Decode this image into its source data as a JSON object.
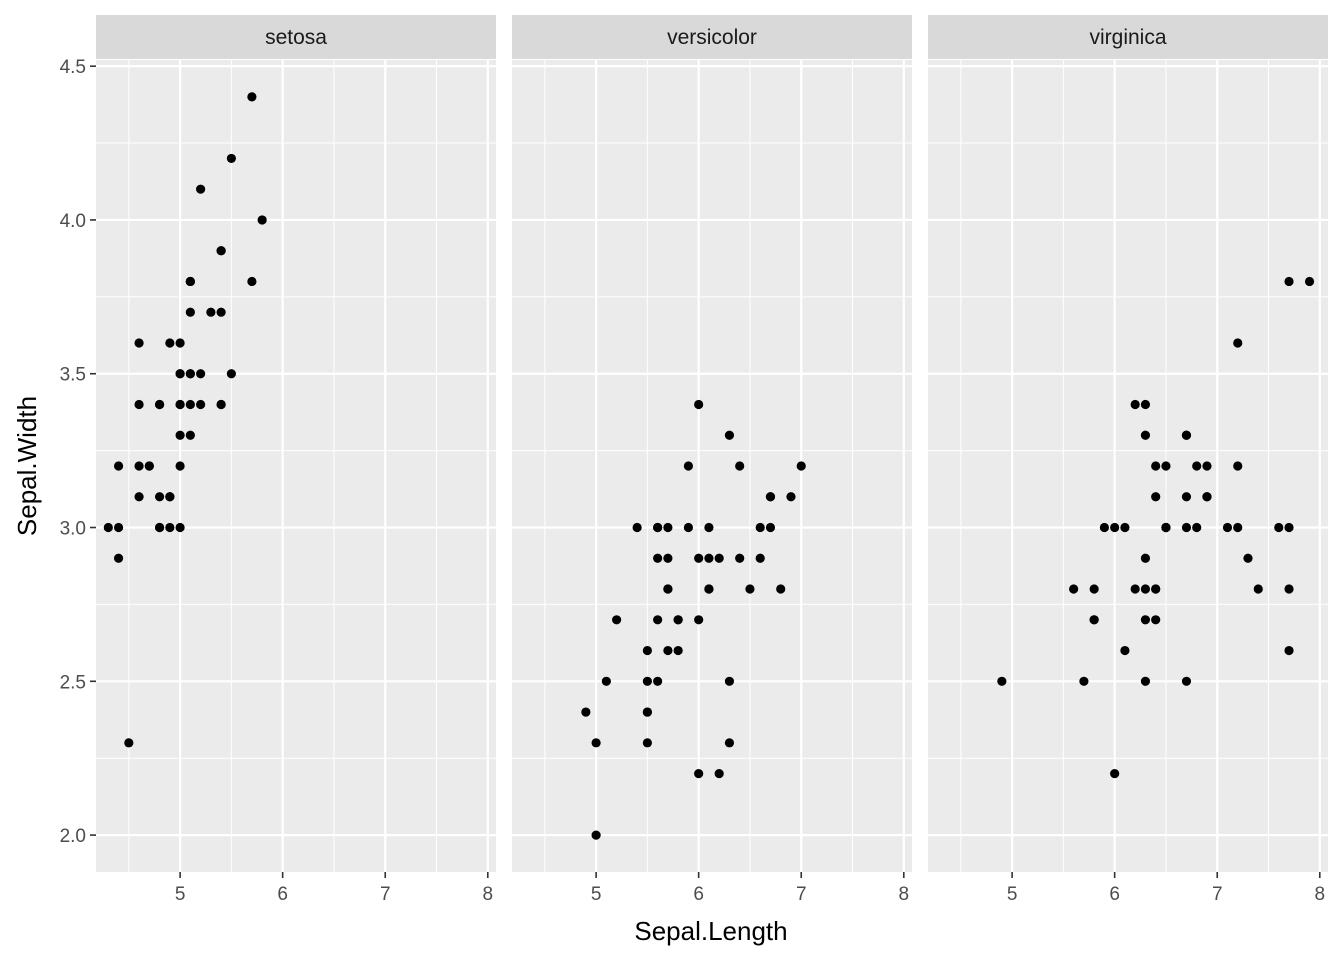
{
  "chart_data": {
    "type": "scatter",
    "facet_by": "Species",
    "xlabel": "Sepal.Length",
    "ylabel": "Sepal.Width",
    "xlim": [
      4.18,
      8.08
    ],
    "ylim": [
      1.88,
      4.52
    ],
    "x_ticks": [
      5,
      6,
      7,
      8
    ],
    "y_ticks": [
      2.0,
      2.5,
      3.0,
      3.5,
      4.0,
      4.5
    ],
    "y_tick_labels": [
      "2.0",
      "2.5",
      "3.0",
      "3.5",
      "4.0",
      "4.5"
    ],
    "grid": true,
    "legend": "none",
    "colors": {
      "panel_bg": "#ebebeb",
      "strip_bg": "#d9d9d9",
      "grid": "#ffffff",
      "point": "#000000",
      "tick": "#333333"
    },
    "facets": [
      {
        "label": "setosa",
        "points": [
          [
            5.1,
            3.5
          ],
          [
            4.9,
            3.0
          ],
          [
            4.7,
            3.2
          ],
          [
            4.6,
            3.1
          ],
          [
            5.0,
            3.6
          ],
          [
            5.4,
            3.9
          ],
          [
            4.6,
            3.4
          ],
          [
            5.0,
            3.4
          ],
          [
            4.4,
            2.9
          ],
          [
            4.9,
            3.1
          ],
          [
            5.4,
            3.7
          ],
          [
            4.8,
            3.4
          ],
          [
            4.8,
            3.0
          ],
          [
            4.3,
            3.0
          ],
          [
            5.8,
            4.0
          ],
          [
            5.7,
            4.4
          ],
          [
            5.4,
            3.9
          ],
          [
            5.1,
            3.5
          ],
          [
            5.7,
            3.8
          ],
          [
            5.1,
            3.8
          ],
          [
            5.4,
            3.4
          ],
          [
            5.1,
            3.7
          ],
          [
            4.6,
            3.6
          ],
          [
            5.1,
            3.3
          ],
          [
            4.8,
            3.4
          ],
          [
            5.0,
            3.0
          ],
          [
            5.0,
            3.4
          ],
          [
            5.2,
            3.5
          ],
          [
            5.2,
            3.4
          ],
          [
            4.7,
            3.2
          ],
          [
            4.8,
            3.1
          ],
          [
            5.4,
            3.4
          ],
          [
            5.2,
            4.1
          ],
          [
            5.5,
            4.2
          ],
          [
            4.9,
            3.1
          ],
          [
            5.0,
            3.2
          ],
          [
            5.5,
            3.5
          ],
          [
            4.9,
            3.6
          ],
          [
            4.4,
            3.0
          ],
          [
            5.1,
            3.4
          ],
          [
            5.0,
            3.5
          ],
          [
            4.5,
            2.3
          ],
          [
            4.4,
            3.2
          ],
          [
            5.0,
            3.5
          ],
          [
            5.1,
            3.8
          ],
          [
            4.8,
            3.0
          ],
          [
            5.1,
            3.8
          ],
          [
            4.6,
            3.2
          ],
          [
            5.3,
            3.7
          ],
          [
            5.0,
            3.3
          ]
        ]
      },
      {
        "label": "versicolor",
        "points": [
          [
            7.0,
            3.2
          ],
          [
            6.4,
            3.2
          ],
          [
            6.9,
            3.1
          ],
          [
            5.5,
            2.3
          ],
          [
            6.5,
            2.8
          ],
          [
            5.7,
            2.8
          ],
          [
            6.3,
            3.3
          ],
          [
            4.9,
            2.4
          ],
          [
            6.6,
            2.9
          ],
          [
            5.2,
            2.7
          ],
          [
            5.0,
            2.0
          ],
          [
            5.9,
            3.0
          ],
          [
            6.0,
            2.2
          ],
          [
            6.1,
            2.9
          ],
          [
            5.6,
            2.9
          ],
          [
            6.7,
            3.1
          ],
          [
            5.6,
            3.0
          ],
          [
            5.8,
            2.7
          ],
          [
            6.2,
            2.2
          ],
          [
            5.6,
            2.5
          ],
          [
            5.9,
            3.2
          ],
          [
            6.1,
            2.8
          ],
          [
            6.3,
            2.5
          ],
          [
            6.1,
            2.8
          ],
          [
            6.4,
            2.9
          ],
          [
            6.6,
            3.0
          ],
          [
            6.8,
            2.8
          ],
          [
            6.7,
            3.0
          ],
          [
            6.0,
            2.9
          ],
          [
            5.7,
            2.6
          ],
          [
            5.5,
            2.4
          ],
          [
            5.5,
            2.4
          ],
          [
            5.8,
            2.7
          ],
          [
            6.0,
            2.7
          ],
          [
            5.4,
            3.0
          ],
          [
            6.0,
            3.4
          ],
          [
            6.7,
            3.1
          ],
          [
            6.3,
            2.3
          ],
          [
            5.6,
            3.0
          ],
          [
            5.5,
            2.5
          ],
          [
            5.5,
            2.6
          ],
          [
            6.1,
            3.0
          ],
          [
            5.8,
            2.6
          ],
          [
            5.0,
            2.3
          ],
          [
            5.6,
            2.7
          ],
          [
            5.7,
            3.0
          ],
          [
            5.7,
            2.9
          ],
          [
            6.2,
            2.9
          ],
          [
            5.1,
            2.5
          ],
          [
            5.7,
            2.8
          ]
        ]
      },
      {
        "label": "virginica",
        "points": [
          [
            6.3,
            3.3
          ],
          [
            5.8,
            2.7
          ],
          [
            7.1,
            3.0
          ],
          [
            6.3,
            2.9
          ],
          [
            6.5,
            3.0
          ],
          [
            7.6,
            3.0
          ],
          [
            4.9,
            2.5
          ],
          [
            7.3,
            2.9
          ],
          [
            6.7,
            2.5
          ],
          [
            7.2,
            3.6
          ],
          [
            6.5,
            3.2
          ],
          [
            6.4,
            2.7
          ],
          [
            6.8,
            3.0
          ],
          [
            5.7,
            2.5
          ],
          [
            5.8,
            2.8
          ],
          [
            6.4,
            3.2
          ],
          [
            6.5,
            3.0
          ],
          [
            7.7,
            3.8
          ],
          [
            7.7,
            2.6
          ],
          [
            6.0,
            2.2
          ],
          [
            6.9,
            3.2
          ],
          [
            5.6,
            2.8
          ],
          [
            7.7,
            2.8
          ],
          [
            6.3,
            2.7
          ],
          [
            6.7,
            3.3
          ],
          [
            7.2,
            3.2
          ],
          [
            6.2,
            2.8
          ],
          [
            6.1,
            3.0
          ],
          [
            6.4,
            2.8
          ],
          [
            7.2,
            3.0
          ],
          [
            7.4,
            2.8
          ],
          [
            7.9,
            3.8
          ],
          [
            6.4,
            2.8
          ],
          [
            6.3,
            2.8
          ],
          [
            6.1,
            2.6
          ],
          [
            7.7,
            3.0
          ],
          [
            6.3,
            3.4
          ],
          [
            6.4,
            3.1
          ],
          [
            6.0,
            3.0
          ],
          [
            6.9,
            3.1
          ],
          [
            6.7,
            3.1
          ],
          [
            6.9,
            3.1
          ],
          [
            5.8,
            2.7
          ],
          [
            6.8,
            3.2
          ],
          [
            6.7,
            3.3
          ],
          [
            6.7,
            3.0
          ],
          [
            6.3,
            2.5
          ],
          [
            6.5,
            3.0
          ],
          [
            6.2,
            3.4
          ],
          [
            5.9,
            3.0
          ]
        ]
      }
    ]
  }
}
